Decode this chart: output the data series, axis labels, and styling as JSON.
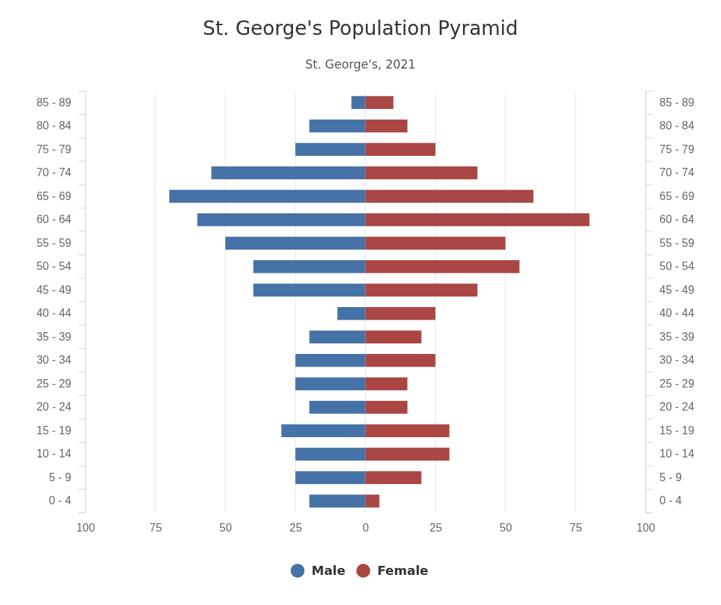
{
  "chart_data": {
    "type": "bar",
    "title": "St. George's Population Pyramid",
    "subtitle": "St. George's, 2021",
    "orientation": "horizontal",
    "stacked": true,
    "categories": [
      "85 - 89",
      "80 - 84",
      "75 - 79",
      "70 - 74",
      "65 - 69",
      "60 - 64",
      "55 - 59",
      "50 - 54",
      "45 - 49",
      "40 - 44",
      "35 - 39",
      "30 - 34",
      "25 - 29",
      "20 - 24",
      "15 - 19",
      "10 - 14",
      "5 - 9",
      "0 - 4"
    ],
    "series": [
      {
        "name": "Male",
        "color": "#4572a7",
        "values": [
          -5,
          -20,
          -25,
          -55,
          -70,
          -60,
          -50,
          -40,
          -40,
          -10,
          -20,
          -25,
          -25,
          -20,
          -30,
          -25,
          -25,
          -20
        ]
      },
      {
        "name": "Female",
        "color": "#aa4643",
        "values": [
          10,
          15,
          25,
          40,
          60,
          80,
          50,
          55,
          40,
          25,
          20,
          25,
          15,
          15,
          30,
          30,
          20,
          5
        ]
      }
    ],
    "xlim": [
      -100,
      100
    ],
    "xticks": [
      {
        "value": -100,
        "label": "100"
      },
      {
        "value": -75,
        "label": "75"
      },
      {
        "value": -50,
        "label": "50"
      },
      {
        "value": -25,
        "label": "25"
      },
      0,
      25,
      50,
      75,
      100
    ],
    "grid": "x",
    "legend": "bottom",
    "marker": "circle"
  }
}
